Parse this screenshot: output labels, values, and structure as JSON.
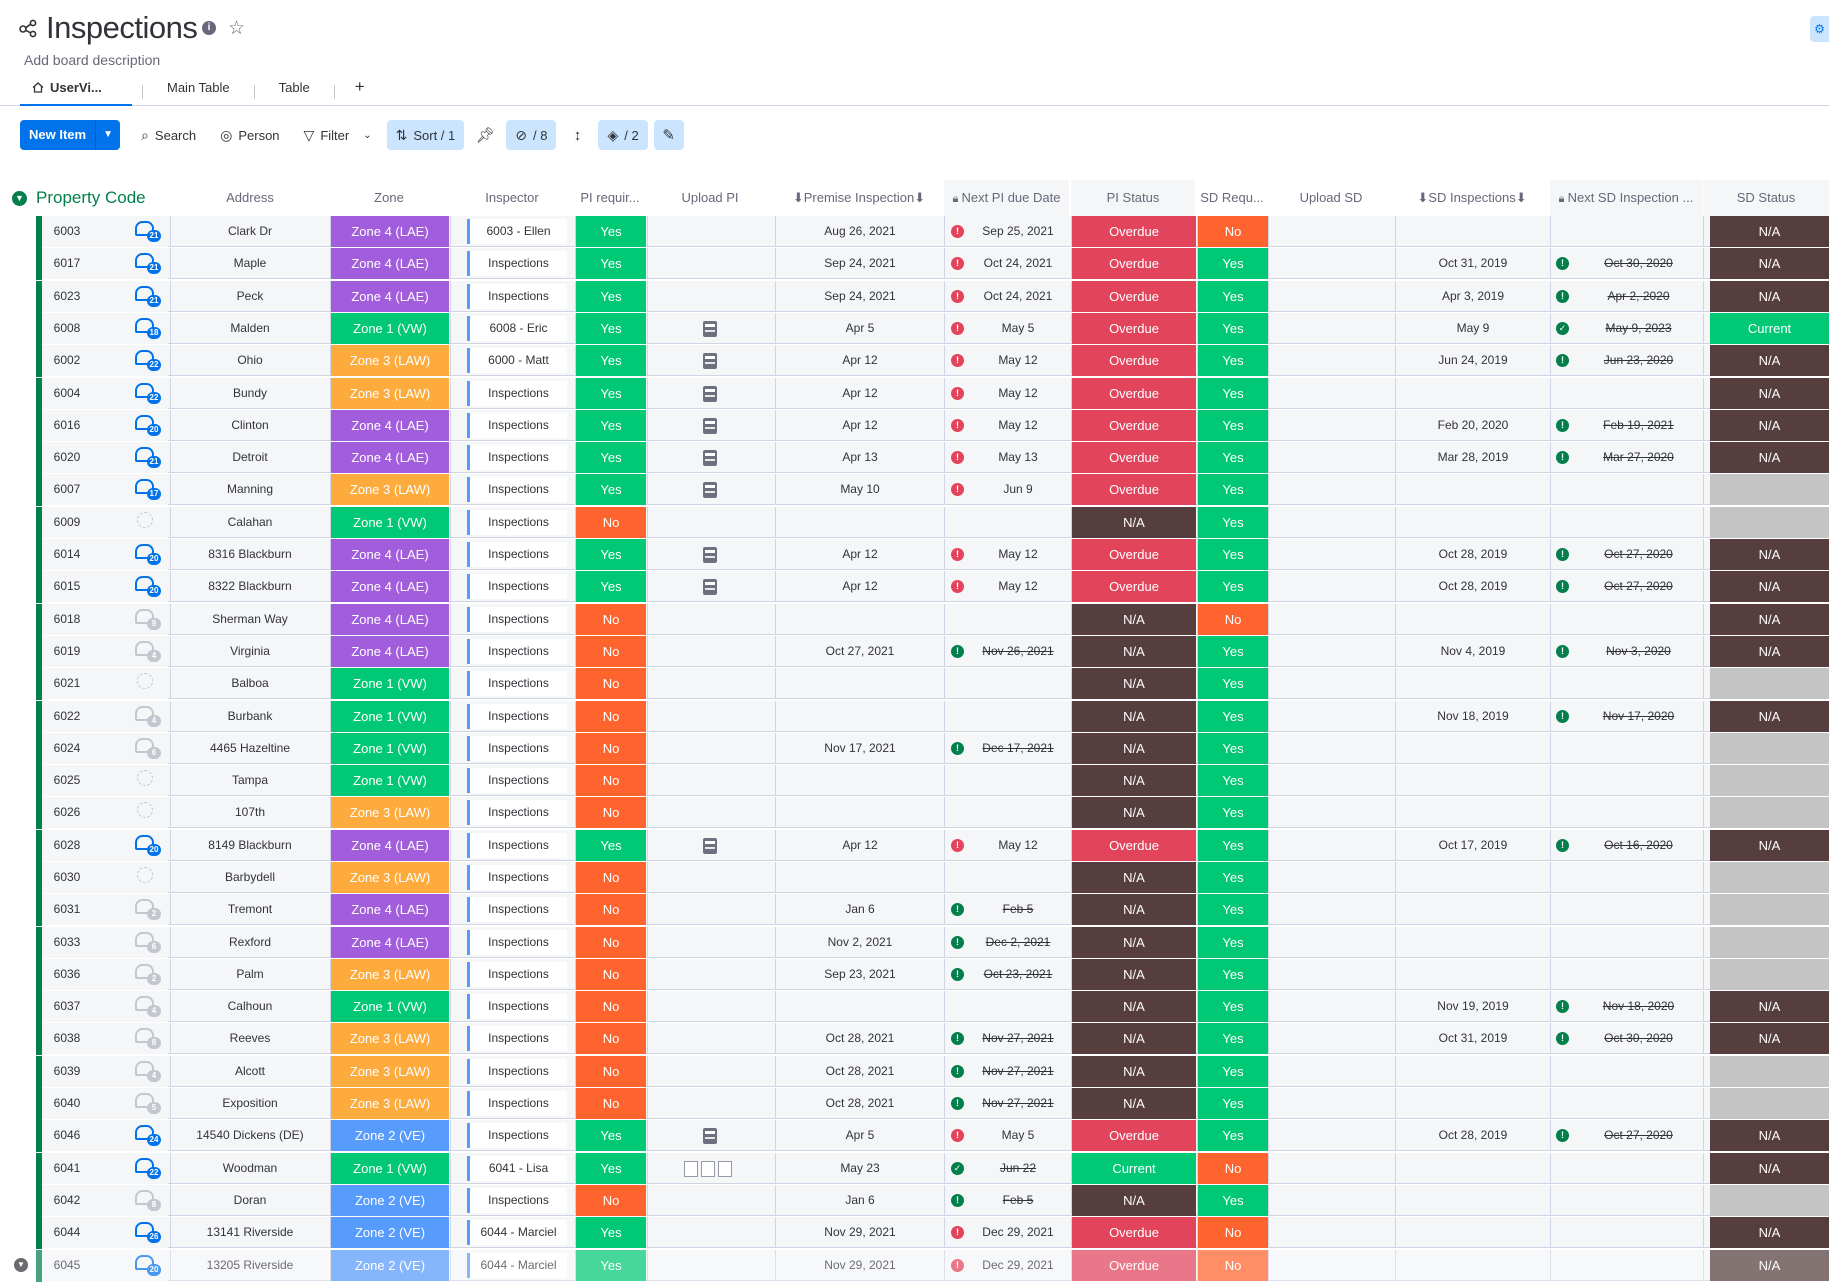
{
  "board": {
    "title": "Inspections",
    "description": "Add board description",
    "tabs": [
      "UserVi...",
      "Main Table",
      "Table"
    ],
    "add_tab": "+"
  },
  "toolbar": {
    "new_item": "New Item",
    "search": "Search",
    "person": "Person",
    "filter": "Filter",
    "sort": "Sort / 1",
    "hidden": "/ 8",
    "color": "/ 2"
  },
  "group": {
    "title": "Property Code",
    "color": "#037f4c"
  },
  "columns": [
    "Address",
    "Zone",
    "Inspector",
    "PI requir...",
    "Upload PI",
    "⬇Premise Inspection⬇",
    "Next PI due Date",
    "PI Status",
    "SD Requ...",
    "Upload SD",
    "⬇SD Inspections⬇",
    "Next SD Inspection ...",
    "SD Status"
  ],
  "status_colors": {
    "Yes": "#00c875",
    "No": "#ff642e",
    "Overdue": "#e2445c",
    "N/A": "#563e3e",
    "Current": "#00c875",
    "Zone 4 (LAE)": "#a25ddc",
    "Zone 1 (VW)": "#00c875",
    "Zone 3 (LAW)": "#fdab3d",
    "Zone 2 (VE)": "#579bfc"
  },
  "rows": [
    {
      "code": "6003",
      "updates": "21",
      "address": "Clark Dr",
      "zone": "Zone 4 (LAE)",
      "inspector": "6003 - Ellen",
      "pi_req": "Yes",
      "upload_pi": "",
      "pi_date": "Aug 26, 2021",
      "pi_ind": "!",
      "next_pi": "Sep 25, 2021",
      "pi_strike": false,
      "pi_status": "Overdue",
      "sd_req": "No",
      "sd_date": "",
      "sd_ind": "",
      "next_sd": "",
      "sd_status": "N/A"
    },
    {
      "code": "6017",
      "updates": "21",
      "address": "Maple",
      "zone": "Zone 4 (LAE)",
      "inspector": "Inspections",
      "pi_req": "Yes",
      "upload_pi": "",
      "pi_date": "Sep 24, 2021",
      "pi_ind": "!",
      "next_pi": "Oct 24, 2021",
      "pi_strike": false,
      "pi_status": "Overdue",
      "sd_req": "Yes",
      "sd_date": "Oct 31, 2019",
      "sd_ind": "!",
      "next_sd": "Oct 30, 2020",
      "sd_status": "N/A"
    },
    {
      "code": "6023",
      "updates": "21",
      "address": "Peck",
      "zone": "Zone 4 (LAE)",
      "inspector": "Inspections",
      "pi_req": "Yes",
      "upload_pi": "",
      "pi_date": "Sep 24, 2021",
      "pi_ind": "!",
      "next_pi": "Oct 24, 2021",
      "pi_strike": false,
      "pi_status": "Overdue",
      "sd_req": "Yes",
      "sd_date": "Apr 3, 2019",
      "sd_ind": "!",
      "next_sd": "Apr 2, 2020",
      "sd_status": "N/A"
    },
    {
      "code": "6008",
      "updates": "18",
      "address": "Malden",
      "zone": "Zone 1 (VW)",
      "inspector": "6008 - Eric",
      "pi_req": "Yes",
      "upload_pi": "file",
      "pi_date": "Apr 5",
      "pi_ind": "!",
      "next_pi": "May 5",
      "pi_strike": false,
      "pi_status": "Overdue",
      "sd_req": "Yes",
      "sd_date": "May 9",
      "sd_ind": "check",
      "next_sd": "May 9, 2023",
      "sd_status": "Current"
    },
    {
      "code": "6002",
      "updates": "22",
      "address": "Ohio",
      "zone": "Zone 3 (LAW)",
      "inspector": "6000 - Matt",
      "pi_req": "Yes",
      "upload_pi": "file",
      "pi_date": "Apr 12",
      "pi_ind": "!",
      "next_pi": "May 12",
      "pi_strike": false,
      "pi_status": "Overdue",
      "sd_req": "Yes",
      "sd_date": "Jun 24, 2019",
      "sd_ind": "!",
      "next_sd": "Jun 23, 2020",
      "sd_status": "N/A"
    },
    {
      "code": "6004",
      "updates": "22",
      "address": "Bundy",
      "zone": "Zone 3 (LAW)",
      "inspector": "Inspections",
      "pi_req": "Yes",
      "upload_pi": "file",
      "pi_date": "Apr 12",
      "pi_ind": "!",
      "next_pi": "May 12",
      "pi_strike": false,
      "pi_status": "Overdue",
      "sd_req": "Yes",
      "sd_date": "",
      "sd_ind": "",
      "next_sd": "",
      "sd_status": "N/A"
    },
    {
      "code": "6016",
      "updates": "20",
      "address": "Clinton",
      "zone": "Zone 4 (LAE)",
      "inspector": "Inspections",
      "pi_req": "Yes",
      "upload_pi": "file",
      "pi_date": "Apr 12",
      "pi_ind": "!",
      "next_pi": "May 12",
      "pi_strike": false,
      "pi_status": "Overdue",
      "sd_req": "Yes",
      "sd_date": "Feb 20, 2020",
      "sd_ind": "!",
      "next_sd": "Feb 19, 2021",
      "sd_status": "N/A"
    },
    {
      "code": "6020",
      "updates": "21",
      "address": "Detroit",
      "zone": "Zone 4 (LAE)",
      "inspector": "Inspections",
      "pi_req": "Yes",
      "upload_pi": "file",
      "pi_date": "Apr 13",
      "pi_ind": "!",
      "next_pi": "May 13",
      "pi_strike": false,
      "pi_status": "Overdue",
      "sd_req": "Yes",
      "sd_date": "Mar 28, 2019",
      "sd_ind": "!",
      "next_sd": "Mar 27, 2020",
      "sd_status": "N/A"
    },
    {
      "code": "6007",
      "updates": "17",
      "address": "Manning",
      "zone": "Zone 3 (LAW)",
      "inspector": "Inspections",
      "pi_req": "Yes",
      "upload_pi": "file",
      "pi_date": "May 10",
      "pi_ind": "!",
      "next_pi": "Jun 9",
      "pi_strike": false,
      "pi_status": "Overdue",
      "sd_req": "Yes",
      "sd_date": "",
      "sd_ind": "",
      "next_sd": "",
      "sd_status": ""
    },
    {
      "code": "6009",
      "updates": "",
      "address": "Calahan",
      "zone": "Zone 1 (VW)",
      "inspector": "Inspections",
      "pi_req": "No",
      "upload_pi": "",
      "pi_date": "",
      "pi_ind": "",
      "next_pi": "",
      "pi_strike": false,
      "pi_status": "N/A",
      "sd_req": "Yes",
      "sd_date": "",
      "sd_ind": "",
      "next_sd": "",
      "sd_status": ""
    },
    {
      "code": "6014",
      "updates": "20",
      "address": "8316 Blackburn",
      "zone": "Zone 4 (LAE)",
      "inspector": "Inspections",
      "pi_req": "Yes",
      "upload_pi": "file",
      "pi_date": "Apr 12",
      "pi_ind": "!",
      "next_pi": "May 12",
      "pi_strike": false,
      "pi_status": "Overdue",
      "sd_req": "Yes",
      "sd_date": "Oct 28, 2019",
      "sd_ind": "!",
      "next_sd": "Oct 27, 2020",
      "sd_status": "N/A"
    },
    {
      "code": "6015",
      "updates": "20",
      "address": "8322 Blackburn",
      "zone": "Zone 4 (LAE)",
      "inspector": "Inspections",
      "pi_req": "Yes",
      "upload_pi": "file",
      "pi_date": "Apr 12",
      "pi_ind": "!",
      "next_pi": "May 12",
      "pi_strike": false,
      "pi_status": "Overdue",
      "sd_req": "Yes",
      "sd_date": "Oct 28, 2019",
      "sd_ind": "!",
      "next_sd": "Oct 27, 2020",
      "sd_status": "N/A"
    },
    {
      "code": "6018",
      "updates": "9",
      "address": "Sherman Way",
      "zone": "Zone 4 (LAE)",
      "inspector": "Inspections",
      "pi_req": "No",
      "upload_pi": "",
      "pi_date": "",
      "pi_ind": "",
      "next_pi": "",
      "pi_strike": false,
      "pi_status": "N/A",
      "sd_req": "No",
      "sd_date": "",
      "sd_ind": "",
      "next_sd": "",
      "sd_status": "N/A"
    },
    {
      "code": "6019",
      "updates": "4",
      "address": "Virginia",
      "zone": "Zone 4 (LAE)",
      "inspector": "Inspections",
      "pi_req": "No",
      "upload_pi": "",
      "pi_date": "Oct 27, 2021",
      "pi_ind": "!",
      "next_pi": "Nov 26, 2021",
      "pi_strike": true,
      "pi_status": "N/A",
      "sd_req": "Yes",
      "sd_date": "Nov 4, 2019",
      "sd_ind": "!",
      "next_sd": "Nov 3, 2020",
      "sd_status": "N/A"
    },
    {
      "code": "6021",
      "updates": "",
      "address": "Balboa",
      "zone": "Zone 1 (VW)",
      "inspector": "Inspections",
      "pi_req": "No",
      "upload_pi": "",
      "pi_date": "",
      "pi_ind": "",
      "next_pi": "",
      "pi_strike": false,
      "pi_status": "N/A",
      "sd_req": "Yes",
      "sd_date": "",
      "sd_ind": "",
      "next_sd": "",
      "sd_status": ""
    },
    {
      "code": "6022",
      "updates": "4",
      "address": "Burbank",
      "zone": "Zone 1 (VW)",
      "inspector": "Inspections",
      "pi_req": "No",
      "upload_pi": "",
      "pi_date": "",
      "pi_ind": "",
      "next_pi": "",
      "pi_strike": false,
      "pi_status": "N/A",
      "sd_req": "Yes",
      "sd_date": "Nov 18, 2019",
      "sd_ind": "!",
      "next_sd": "Nov 17, 2020",
      "sd_status": "N/A"
    },
    {
      "code": "6024",
      "updates": "6",
      "address": "4465 Hazeltine",
      "zone": "Zone 1 (VW)",
      "inspector": "Inspections",
      "pi_req": "No",
      "upload_pi": "",
      "pi_date": "Nov 17, 2021",
      "pi_ind": "!",
      "next_pi": "Dec 17, 2021",
      "pi_strike": true,
      "pi_status": "N/A",
      "sd_req": "Yes",
      "sd_date": "",
      "sd_ind": "",
      "next_sd": "",
      "sd_status": ""
    },
    {
      "code": "6025",
      "updates": "",
      "address": "Tampa",
      "zone": "Zone 1 (VW)",
      "inspector": "Inspections",
      "pi_req": "No",
      "upload_pi": "",
      "pi_date": "",
      "pi_ind": "",
      "next_pi": "",
      "pi_strike": false,
      "pi_status": "N/A",
      "sd_req": "Yes",
      "sd_date": "",
      "sd_ind": "",
      "next_sd": "",
      "sd_status": ""
    },
    {
      "code": "6026",
      "updates": "",
      "address": "107th",
      "zone": "Zone 3 (LAW)",
      "inspector": "Inspections",
      "pi_req": "No",
      "upload_pi": "",
      "pi_date": "",
      "pi_ind": "",
      "next_pi": "",
      "pi_strike": false,
      "pi_status": "N/A",
      "sd_req": "Yes",
      "sd_date": "",
      "sd_ind": "",
      "next_sd": "",
      "sd_status": ""
    },
    {
      "code": "6028",
      "updates": "20",
      "address": "8149 Blackburn",
      "zone": "Zone 4 (LAE)",
      "inspector": "Inspections",
      "pi_req": "Yes",
      "upload_pi": "file",
      "pi_date": "Apr 12",
      "pi_ind": "!",
      "next_pi": "May 12",
      "pi_strike": false,
      "pi_status": "Overdue",
      "sd_req": "Yes",
      "sd_date": "Oct 17, 2019",
      "sd_ind": "!",
      "next_sd": "Oct 16, 2020",
      "sd_status": "N/A"
    },
    {
      "code": "6030",
      "updates": "",
      "address": "Barbydell",
      "zone": "Zone 3 (LAW)",
      "inspector": "Inspections",
      "pi_req": "No",
      "upload_pi": "",
      "pi_date": "",
      "pi_ind": "",
      "next_pi": "",
      "pi_strike": false,
      "pi_status": "N/A",
      "sd_req": "Yes",
      "sd_date": "",
      "sd_ind": "",
      "next_sd": "",
      "sd_status": ""
    },
    {
      "code": "6031",
      "updates": "2",
      "address": "Tremont",
      "zone": "Zone 4 (LAE)",
      "inspector": "Inspections",
      "pi_req": "No",
      "upload_pi": "",
      "pi_date": "Jan 6",
      "pi_ind": "!",
      "next_pi": "Feb 5",
      "pi_strike": true,
      "pi_status": "N/A",
      "sd_req": "Yes",
      "sd_date": "",
      "sd_ind": "",
      "next_sd": "",
      "sd_status": ""
    },
    {
      "code": "6033",
      "updates": "6",
      "address": "Rexford",
      "zone": "Zone 4 (LAE)",
      "inspector": "Inspections",
      "pi_req": "No",
      "upload_pi": "",
      "pi_date": "Nov 2, 2021",
      "pi_ind": "!",
      "next_pi": "Dec 2, 2021",
      "pi_strike": true,
      "pi_status": "N/A",
      "sd_req": "Yes",
      "sd_date": "",
      "sd_ind": "",
      "next_sd": "",
      "sd_status": ""
    },
    {
      "code": "6036",
      "updates": "2",
      "address": "Palm",
      "zone": "Zone 3 (LAW)",
      "inspector": "Inspections",
      "pi_req": "No",
      "upload_pi": "",
      "pi_date": "Sep 23, 2021",
      "pi_ind": "!",
      "next_pi": "Oct 23, 2021",
      "pi_strike": true,
      "pi_status": "N/A",
      "sd_req": "Yes",
      "sd_date": "",
      "sd_ind": "",
      "next_sd": "",
      "sd_status": ""
    },
    {
      "code": "6037",
      "updates": "4",
      "address": "Calhoun",
      "zone": "Zone 1 (VW)",
      "inspector": "Inspections",
      "pi_req": "No",
      "upload_pi": "",
      "pi_date": "",
      "pi_ind": "",
      "next_pi": "",
      "pi_strike": false,
      "pi_status": "N/A",
      "sd_req": "Yes",
      "sd_date": "Nov 19, 2019",
      "sd_ind": "!",
      "next_sd": "Nov 18, 2020",
      "sd_status": "N/A"
    },
    {
      "code": "6038",
      "updates": "8",
      "address": "Reeves",
      "zone": "Zone 3 (LAW)",
      "inspector": "Inspections",
      "pi_req": "No",
      "upload_pi": "",
      "pi_date": "Oct 28, 2021",
      "pi_ind": "!",
      "next_pi": "Nov 27, 2021",
      "pi_strike": true,
      "pi_status": "N/A",
      "sd_req": "Yes",
      "sd_date": "Oct 31, 2019",
      "sd_ind": "!",
      "next_sd": "Oct 30, 2020",
      "sd_status": "N/A"
    },
    {
      "code": "6039",
      "updates": "4",
      "address": "Alcott",
      "zone": "Zone 3 (LAW)",
      "inspector": "Inspections",
      "pi_req": "No",
      "upload_pi": "",
      "pi_date": "Oct 28, 2021",
      "pi_ind": "!",
      "next_pi": "Nov 27, 2021",
      "pi_strike": true,
      "pi_status": "N/A",
      "sd_req": "Yes",
      "sd_date": "",
      "sd_ind": "",
      "next_sd": "",
      "sd_status": ""
    },
    {
      "code": "6040",
      "updates": "5",
      "address": "Exposition",
      "zone": "Zone 3 (LAW)",
      "inspector": "Inspections",
      "pi_req": "No",
      "upload_pi": "",
      "pi_date": "Oct 28, 2021",
      "pi_ind": "!",
      "next_pi": "Nov 27, 2021",
      "pi_strike": true,
      "pi_status": "N/A",
      "sd_req": "Yes",
      "sd_date": "",
      "sd_ind": "",
      "next_sd": "",
      "sd_status": ""
    },
    {
      "code": "6046",
      "updates": "24",
      "address": "14540 Dickens (DE)",
      "zone": "Zone 2 (VE)",
      "inspector": "Inspections",
      "pi_req": "Yes",
      "upload_pi": "file",
      "pi_date": "Apr 5",
      "pi_ind": "!",
      "next_pi": "May 5",
      "pi_strike": false,
      "pi_status": "Overdue",
      "sd_req": "Yes",
      "sd_date": "Oct 28, 2019",
      "sd_ind": "!",
      "next_sd": "Oct 27, 2020",
      "sd_status": "N/A"
    },
    {
      "code": "6041",
      "updates": "22",
      "address": "Woodman",
      "zone": "Zone 1 (VW)",
      "inspector": "6041 - Lisa",
      "pi_req": "Yes",
      "upload_pi": "docs",
      "pi_date": "May 23",
      "pi_ind": "check",
      "next_pi": "Jun 22",
      "pi_strike": true,
      "pi_status": "Current",
      "sd_req": "No",
      "sd_date": "",
      "sd_ind": "",
      "next_sd": "",
      "sd_status": "N/A"
    },
    {
      "code": "6042",
      "updates": "8",
      "address": "Doran",
      "zone": "Zone 2 (VE)",
      "inspector": "Inspections",
      "pi_req": "No",
      "upload_pi": "",
      "pi_date": "Jan 6",
      "pi_ind": "!",
      "next_pi": "Feb 5",
      "pi_strike": true,
      "pi_status": "N/A",
      "sd_req": "Yes",
      "sd_date": "",
      "sd_ind": "",
      "next_sd": "",
      "sd_status": ""
    },
    {
      "code": "6044",
      "updates": "26",
      "address": "13141 Riverside",
      "zone": "Zone 2 (VE)",
      "inspector": "6044 - Marciel",
      "pi_req": "Yes",
      "upload_pi": "",
      "pi_date": "Nov 29, 2021",
      "pi_ind": "!",
      "next_pi": "Dec 29, 2021",
      "pi_strike": false,
      "pi_status": "Overdue",
      "sd_req": "No",
      "sd_date": "",
      "sd_ind": "",
      "next_sd": "",
      "sd_status": "N/A"
    },
    {
      "code": "6045",
      "updates": "20",
      "address": "13205 Riverside",
      "zone": "Zone 2 (VE)",
      "inspector": "6044 - Marciel",
      "pi_req": "Yes",
      "upload_pi": "",
      "pi_date": "Nov 29, 2021",
      "pi_ind": "!",
      "next_pi": "Dec 29, 2021",
      "pi_strike": false,
      "pi_status": "Overdue",
      "sd_req": "No",
      "sd_date": "",
      "sd_ind": "",
      "next_sd": "",
      "sd_status": "N/A"
    }
  ]
}
